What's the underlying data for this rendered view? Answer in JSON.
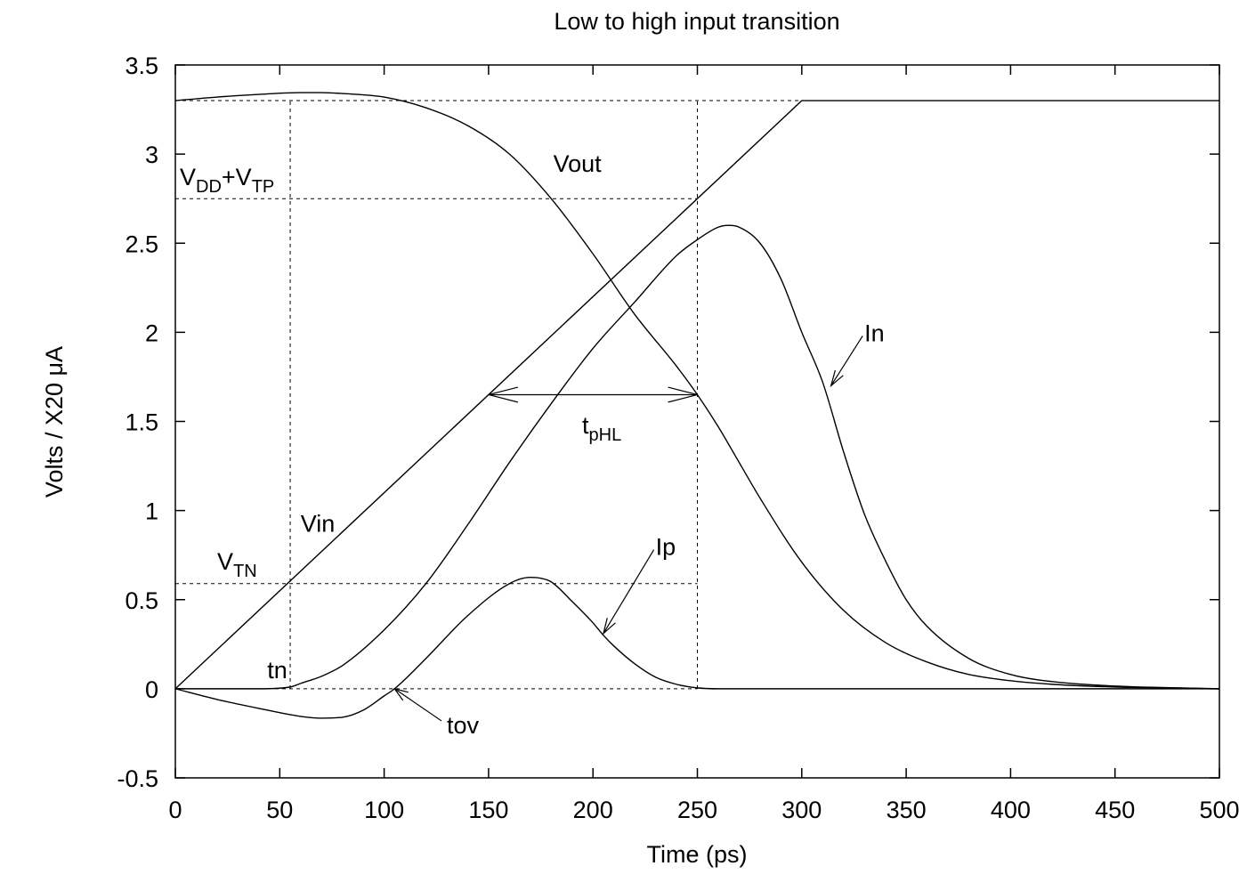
{
  "chart_data": {
    "type": "line",
    "title": "Low to high input transition",
    "xlabel": "Time (ps)",
    "ylabel": "Volts / X20  μA",
    "xlim": [
      0,
      500
    ],
    "ylim": [
      -0.5,
      3.5
    ],
    "x_ticks": [
      0,
      50,
      100,
      150,
      200,
      250,
      300,
      350,
      400,
      450,
      500
    ],
    "y_ticks": [
      -0.5,
      0,
      0.5,
      1,
      1.5,
      2,
      2.5,
      3,
      3.5
    ],
    "grid": false,
    "legend": "none",
    "series": [
      {
        "name": "Vin",
        "x": [
          0,
          300,
          500
        ],
        "y": [
          0,
          3.3,
          3.3
        ]
      },
      {
        "name": "Vout",
        "x": [
          0,
          20,
          40,
          60,
          70,
          80,
          100,
          120,
          140,
          160,
          180,
          200,
          220,
          240,
          250,
          260,
          270,
          280,
          300,
          320,
          340,
          360,
          380,
          400,
          420,
          450,
          480,
          500
        ],
        "y": [
          3.3,
          3.32,
          3.335,
          3.345,
          3.345,
          3.34,
          3.32,
          3.26,
          3.16,
          3.0,
          2.75,
          2.44,
          2.1,
          1.81,
          1.65,
          1.47,
          1.27,
          1.07,
          0.71,
          0.44,
          0.26,
          0.15,
          0.08,
          0.045,
          0.025,
          0.01,
          0.004,
          0
        ]
      },
      {
        "name": "In",
        "x": [
          0,
          40,
          55,
          60,
          70,
          80,
          100,
          120,
          140,
          160,
          180,
          200,
          220,
          240,
          250,
          260,
          265,
          270,
          280,
          290,
          300,
          310,
          320,
          330,
          340,
          350,
          360,
          380,
          400,
          420,
          450,
          480,
          500
        ],
        "y": [
          0,
          0,
          0.01,
          0.03,
          0.07,
          0.13,
          0.33,
          0.59,
          0.92,
          1.27,
          1.6,
          1.91,
          2.17,
          2.43,
          2.52,
          2.59,
          2.6,
          2.59,
          2.5,
          2.3,
          2.0,
          1.72,
          1.33,
          0.98,
          0.72,
          0.5,
          0.35,
          0.17,
          0.08,
          0.04,
          0.015,
          0.005,
          0
        ]
      },
      {
        "name": "Ip",
        "x": [
          0,
          20,
          40,
          60,
          70,
          80,
          90,
          100,
          105,
          120,
          140,
          160,
          170,
          175,
          180,
          190,
          200,
          205,
          210,
          220,
          230,
          240,
          250,
          260,
          300,
          500
        ],
        "y": [
          0,
          -0.06,
          -0.11,
          -0.155,
          -0.165,
          -0.16,
          -0.12,
          -0.04,
          0,
          0.17,
          0.41,
          0.59,
          0.625,
          0.62,
          0.6,
          0.49,
          0.37,
          0.3,
          0.24,
          0.14,
          0.065,
          0.025,
          0.005,
          0,
          0,
          0
        ]
      }
    ],
    "reference_lines": [
      {
        "label": "VDD+VTP",
        "orientation": "horizontal",
        "y": 2.75,
        "x_range": [
          0,
          250
        ]
      },
      {
        "label": "VTN",
        "orientation": "horizontal",
        "y": 0.59,
        "x_range": [
          0,
          250
        ]
      },
      {
        "orientation": "horizontal",
        "y": 3.3,
        "x_range": [
          0,
          300
        ]
      },
      {
        "orientation": "horizontal",
        "y": 0,
        "x_range": [
          0,
          250
        ]
      },
      {
        "orientation": "vertical",
        "x": 55,
        "y_range": [
          0,
          3.3
        ]
      },
      {
        "orientation": "vertical",
        "x": 250,
        "y_range": [
          0,
          3.3
        ]
      }
    ],
    "annotations": [
      {
        "id": "vout",
        "text": "Vout",
        "x": 181,
        "y": 2.9
      },
      {
        "id": "vin",
        "text": "Vin",
        "x": 60,
        "y": 0.88
      },
      {
        "id": "tn",
        "text": "tn",
        "x": 44,
        "y": 0.06
      },
      {
        "id": "tov",
        "text": "tov",
        "x": 130,
        "y": -0.25
      },
      {
        "id": "in",
        "text": "In",
        "x": 330,
        "y": 1.95,
        "arrow_to": [
          314,
          1.7
        ]
      },
      {
        "id": "ip",
        "text": "Ip",
        "x": 230,
        "y": 0.75,
        "arrow_to": [
          205,
          0.31
        ]
      }
    ],
    "label_vddvtp": {
      "main": "V",
      "sub1": "DD",
      "plus": "+V",
      "sub2": "TP"
    },
    "label_vtn": {
      "main": "V",
      "sub": "TN"
    },
    "label_tphl": {
      "main": "t",
      "sub": "pHL"
    },
    "tphl": {
      "x_start": 150,
      "x_end": 250,
      "y": 1.65
    },
    "tov_point": {
      "x": 105,
      "y": 0
    }
  }
}
